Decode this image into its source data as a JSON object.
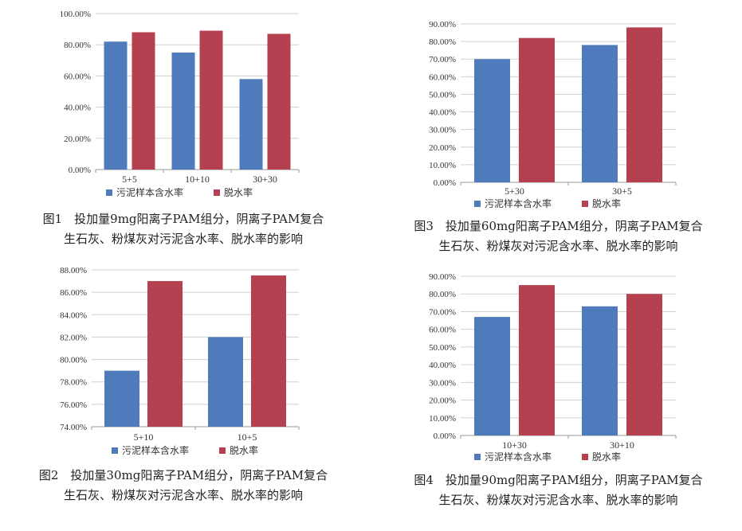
{
  "colors": {
    "water": "#4f7bbd",
    "dewater": "#b5404f",
    "grid": "#d0d0d0",
    "axis": "#999999"
  },
  "legend": {
    "water": "污泥样本含水率",
    "dewater": "脱水率"
  },
  "captions": [
    {
      "line1": "图1　投加量9mg阳离子PAM组分，阴离子PAM复合",
      "line2": "生石灰、粉煤灰对污泥含水率、脱水率的影响"
    },
    {
      "line1": "图2　投加量30mg阳离子PAM组分，阴离子PAM复合",
      "line2": "生石灰、粉煤灰对污泥含水率、脱水率的影响"
    },
    {
      "line1": "图3　投加量60mg阳离子PAM组分，阴离子PAM复合",
      "line2": "生石灰、粉煤灰对污泥含水率、脱水率的影响"
    },
    {
      "line1": "图4　投加量90mg阳离子PAM组分，阴离子PAM复合",
      "line2": "生石灰、粉煤灰对污泥含水率、脱水率的影响"
    }
  ],
  "chart_data": [
    {
      "type": "bar",
      "categories": [
        "5+5",
        "10+10",
        "30+30"
      ],
      "series": [
        {
          "name": "污泥样本含水率",
          "values": [
            82,
            75,
            58
          ]
        },
        {
          "name": "脱水率",
          "values": [
            88,
            89,
            87
          ]
        }
      ],
      "ylim": [
        0,
        100
      ],
      "yticks": [
        "0.00%",
        "20.00%",
        "40.00%",
        "60.00%",
        "80.00%",
        "100.00%"
      ],
      "legend_position": "bottom"
    },
    {
      "type": "bar",
      "categories": [
        "5+10",
        "10+5"
      ],
      "series": [
        {
          "name": "污泥样本含水率",
          "values": [
            79,
            82
          ]
        },
        {
          "name": "脱水率",
          "values": [
            87,
            87.5
          ]
        }
      ],
      "ylim": [
        74,
        88
      ],
      "yticks": [
        "74.00%",
        "76.00%",
        "78.00%",
        "80.00%",
        "82.00%",
        "84.00%",
        "86.00%",
        "88.00%"
      ],
      "legend_position": "bottom"
    },
    {
      "type": "bar",
      "categories": [
        "5+30",
        "30+5"
      ],
      "series": [
        {
          "name": "污泥样本含水率",
          "values": [
            70,
            78
          ]
        },
        {
          "name": "脱水率",
          "values": [
            82,
            88
          ]
        }
      ],
      "ylim": [
        0,
        90
      ],
      "yticks": [
        "0.00%",
        "10.00%",
        "20.00%",
        "30.00%",
        "40.00%",
        "50.00%",
        "60.00%",
        "70.00%",
        "80.00%",
        "90.00%"
      ],
      "legend_position": "bottom"
    },
    {
      "type": "bar",
      "categories": [
        "10+30",
        "30+10"
      ],
      "series": [
        {
          "name": "污泥样本含水率",
          "values": [
            67,
            73
          ]
        },
        {
          "name": "脱水率",
          "values": [
            85,
            80
          ]
        }
      ],
      "ylim": [
        0,
        90
      ],
      "yticks": [
        "0.00%",
        "10.00%",
        "20.00%",
        "30.00%",
        "40.00%",
        "50.00%",
        "60.00%",
        "70.00%",
        "80.00%",
        "90.00%"
      ],
      "legend_position": "bottom"
    }
  ]
}
